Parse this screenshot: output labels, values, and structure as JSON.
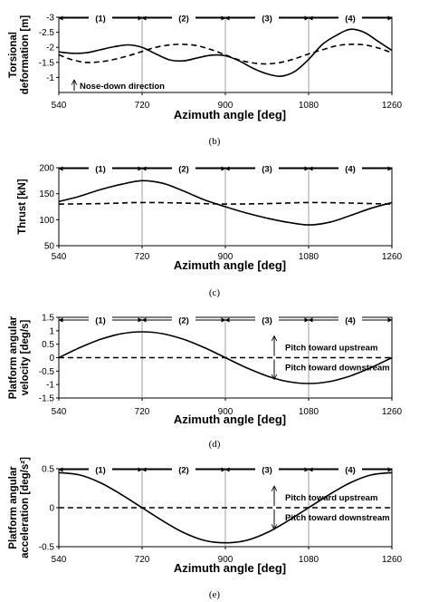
{
  "chart_data": [
    {
      "id": "b",
      "type": "line",
      "caption": "(b)",
      "ylabel": "Torsional deformation [m]",
      "ylabel_lines": [
        "Torsional",
        "deformation [m]"
      ],
      "xlabel": "Azimuth angle [deg]",
      "xlim": [
        540,
        1260
      ],
      "ylim": [
        -3,
        -0.5
      ],
      "y_inverted": true,
      "xticks": [
        540,
        720,
        900,
        1080,
        1260
      ],
      "yticks": [
        -3,
        -2.5,
        -2,
        -1.5,
        -1
      ],
      "yticks_labels": [
        "-3",
        "-2.5",
        "-2",
        "-1.5",
        "-1"
      ],
      "segments": [
        "(1)",
        "(2)",
        "(3)",
        "(4)"
      ],
      "series": [
        {
          "style": "solid",
          "x": [
            540,
            570,
            600,
            630,
            660,
            690,
            720,
            750,
            780,
            810,
            840,
            870,
            900,
            930,
            960,
            990,
            1020,
            1050,
            1080,
            1110,
            1140,
            1170,
            1200,
            1230,
            1260
          ],
          "y": [
            -1.85,
            -1.8,
            -1.82,
            -1.92,
            -2.02,
            -2.08,
            -2.0,
            -1.78,
            -1.58,
            -1.55,
            -1.65,
            -1.74,
            -1.72,
            -1.55,
            -1.3,
            -1.12,
            -1.04,
            -1.2,
            -1.6,
            -2.1,
            -2.4,
            -2.6,
            -2.5,
            -2.2,
            -1.9
          ]
        },
        {
          "style": "dashed",
          "x": [
            540,
            570,
            600,
            630,
            660,
            690,
            720,
            750,
            780,
            810,
            840,
            870,
            900,
            930,
            960,
            990,
            1020,
            1050,
            1080,
            1110,
            1140,
            1170,
            1200,
            1230,
            1260
          ],
          "y": [
            -1.75,
            -1.58,
            -1.5,
            -1.52,
            -1.6,
            -1.72,
            -1.86,
            -2.0,
            -2.08,
            -2.1,
            -2.05,
            -1.92,
            -1.75,
            -1.58,
            -1.48,
            -1.45,
            -1.5,
            -1.62,
            -1.78,
            -1.92,
            -2.05,
            -2.1,
            -2.08,
            -1.98,
            -1.82
          ]
        }
      ],
      "annotations": [
        {
          "text": "Nose-down direction",
          "x": 570,
          "y": -0.8,
          "arrow": "up"
        }
      ]
    },
    {
      "id": "c",
      "type": "line",
      "caption": "(c)",
      "ylabel": "Thrust [kN]",
      "ylabel_lines": [
        "Thrust [kN]"
      ],
      "xlabel": "Azimuth angle [deg]",
      "xlim": [
        540,
        1260
      ],
      "ylim": [
        50,
        200
      ],
      "y_inverted": false,
      "xticks": [
        540,
        720,
        900,
        1080,
        1260
      ],
      "yticks": [
        50,
        100,
        150,
        200
      ],
      "yticks_labels": [
        "50",
        "100",
        "150",
        "200"
      ],
      "segments": [
        "(1)",
        "(2)",
        "(3)",
        "(4)"
      ],
      "series": [
        {
          "style": "solid",
          "x": [
            540,
            585,
            630,
            675,
            720,
            765,
            810,
            855,
            900,
            945,
            990,
            1035,
            1080,
            1125,
            1170,
            1215,
            1260
          ],
          "y": [
            135,
            145,
            158,
            168,
            175,
            170,
            155,
            138,
            125,
            113,
            103,
            95,
            90,
            95,
            108,
            122,
            133
          ]
        },
        {
          "style": "dashed",
          "x": [
            540,
            630,
            720,
            810,
            900,
            990,
            1080,
            1170,
            1260
          ],
          "y": [
            130,
            131,
            133,
            132,
            130,
            131,
            133,
            132,
            130
          ]
        }
      ],
      "annotations": []
    },
    {
      "id": "d",
      "type": "line",
      "caption": "(d)",
      "ylabel": "Platform angular velocity [deg/s]",
      "ylabel_lines": [
        "Platform angular",
        "velocity [deg/s]"
      ],
      "xlabel": "Azimuth angle [deg]",
      "xlim": [
        540,
        1260
      ],
      "ylim": [
        -1.5,
        1.5
      ],
      "y_inverted": false,
      "xticks": [
        540,
        720,
        900,
        1080,
        1260
      ],
      "yticks": [
        -1.5,
        -1,
        -0.5,
        0,
        0.5,
        1,
        1.5
      ],
      "yticks_labels": [
        "-1.5",
        "-1",
        "-0.5",
        "0",
        "0.5",
        "1",
        "1.5"
      ],
      "segments": [
        "(1)",
        "(2)",
        "(3)",
        "(4)"
      ],
      "series": [
        {
          "style": "solid",
          "x": [
            540,
            585,
            630,
            675,
            720,
            765,
            810,
            855,
            900,
            945,
            990,
            1035,
            1080,
            1125,
            1170,
            1215,
            1260
          ],
          "y": [
            0,
            0.37,
            0.68,
            0.89,
            0.96,
            0.89,
            0.68,
            0.37,
            0,
            -0.37,
            -0.68,
            -0.89,
            -0.96,
            -0.89,
            -0.68,
            -0.37,
            0
          ]
        },
        {
          "style": "dashed",
          "x": [
            540,
            1260
          ],
          "y": [
            0,
            0
          ]
        }
      ],
      "annotations": [
        {
          "text": "Pitch toward upstream",
          "x": 1035,
          "y": 0.3
        },
        {
          "text": "Pitch toward downstream",
          "x": 1035,
          "y": -0.3
        }
      ]
    },
    {
      "id": "e",
      "type": "line",
      "caption": "(e)",
      "ylabel": "Platform angular acceleration [deg/s²]",
      "ylabel_lines": [
        "Platform angular",
        "acceleration [deg/s²]"
      ],
      "xlabel": "Azimuth angle [deg]",
      "xlim": [
        540,
        1260
      ],
      "ylim": [
        -0.5,
        0.5
      ],
      "y_inverted": false,
      "xticks": [
        540,
        720,
        900,
        1080,
        1260
      ],
      "yticks": [
        -0.5,
        0,
        0.5
      ],
      "yticks_labels": [
        "-0.5",
        "0",
        "0.5"
      ],
      "segments": [
        "(1)",
        "(2)",
        "(3)",
        "(4)"
      ],
      "series": [
        {
          "style": "solid",
          "x": [
            540,
            585,
            630,
            675,
            720,
            765,
            810,
            855,
            900,
            945,
            990,
            1035,
            1080,
            1125,
            1170,
            1215,
            1260
          ],
          "y": [
            0.45,
            0.42,
            0.32,
            0.17,
            0,
            -0.17,
            -0.32,
            -0.42,
            -0.45,
            -0.42,
            -0.32,
            -0.17,
            0,
            0.17,
            0.32,
            0.42,
            0.45
          ]
        },
        {
          "style": "dashed",
          "x": [
            540,
            1260
          ],
          "y": [
            0,
            0
          ]
        }
      ],
      "annotations": [
        {
          "text": "Pitch toward upstream",
          "x": 1035,
          "y": 0.1
        },
        {
          "text": "Pitch toward downstream",
          "x": 1035,
          "y": -0.1
        }
      ]
    }
  ]
}
